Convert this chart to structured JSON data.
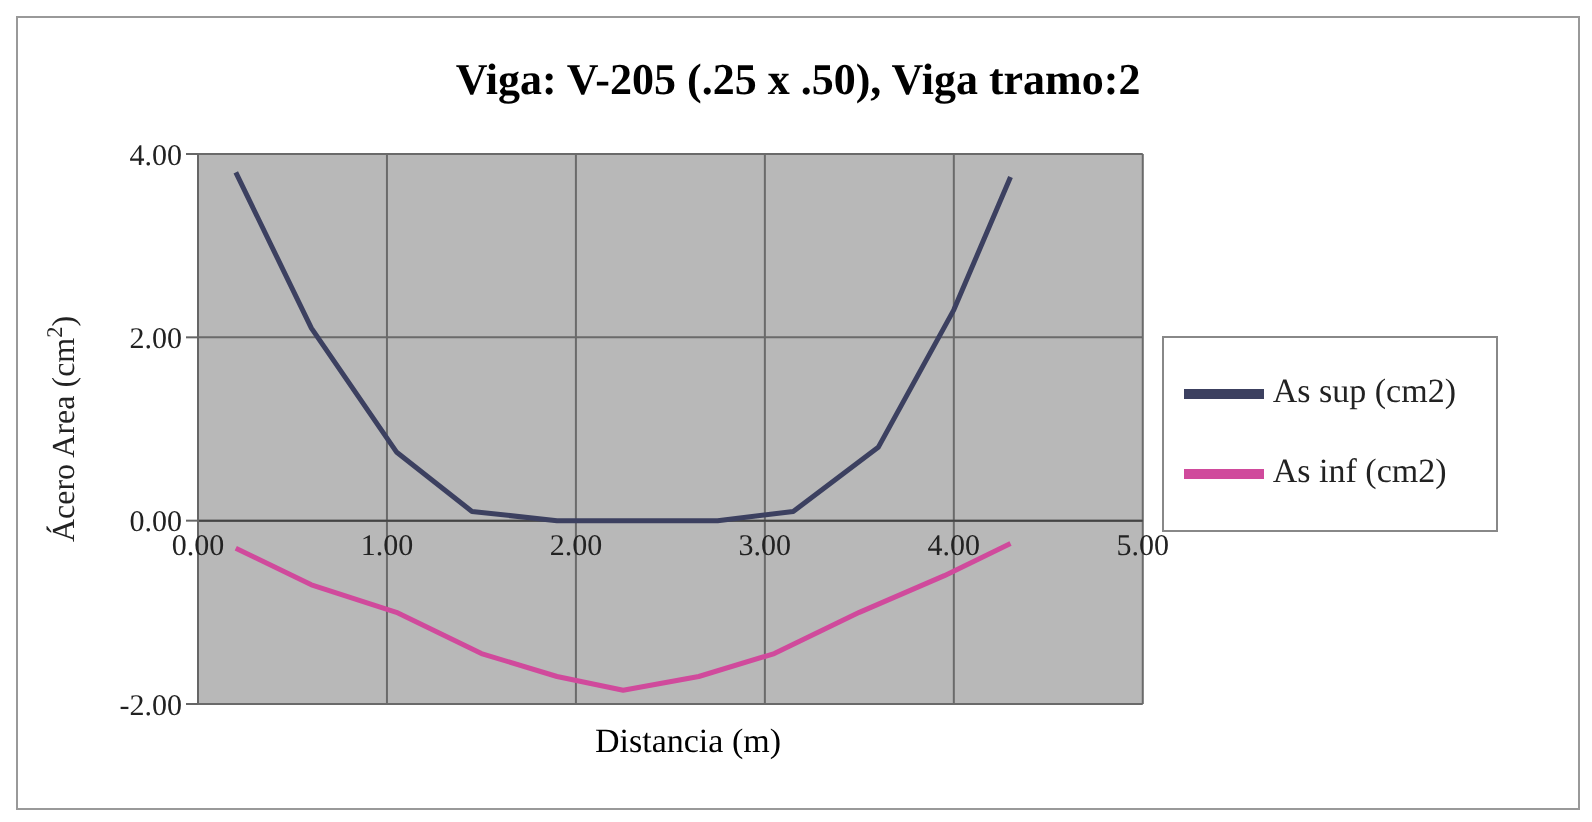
{
  "chart_data": {
    "type": "line",
    "title": "Viga: V-205 (.25 x .50), Viga tramo:2",
    "xlabel": "Distancia (m)",
    "ylabel": "Ácero Area (cm$^{2}$)",
    "series": [
      {
        "name": "As sup (cm2)",
        "color": "#3c4060",
        "x": [
          0.2,
          0.6,
          1.05,
          1.45,
          1.9,
          2.35,
          2.75,
          3.15,
          3.6,
          4.0,
          4.3
        ],
        "values": [
          3.8,
          2.1,
          0.75,
          0.1,
          0,
          0,
          0,
          0.1,
          0.8,
          2.3,
          3.75
        ]
      },
      {
        "name": "As inf (cm2)",
        "color": "#d04a9c",
        "x": [
          0.2,
          0.6,
          1.05,
          1.5,
          1.9,
          2.25,
          2.65,
          3.05,
          3.5,
          3.95,
          4.3
        ],
        "values": [
          -0.3,
          -0.7,
          -1.0,
          -1.45,
          -1.7,
          -1.85,
          -1.7,
          -1.45,
          -1.0,
          -0.6,
          -0.25
        ]
      }
    ],
    "xlim": [
      0,
      5
    ],
    "xticks": [
      {
        "value": 0,
        "label": "0.00"
      },
      {
        "value": 1,
        "label": "1.00"
      },
      {
        "value": 2,
        "label": "2.00"
      },
      {
        "value": 3,
        "label": "3.00"
      },
      {
        "value": 4,
        "label": "4.00"
      },
      {
        "value": 5,
        "label": "5.00"
      }
    ],
    "ylim": [
      -2,
      4
    ],
    "yticks": [
      {
        "value": -2,
        "label": "-2.00"
      },
      {
        "value": 0,
        "label": "0.00"
      },
      {
        "value": 2,
        "label": "2.00"
      },
      {
        "value": 4,
        "label": "4.00"
      }
    ],
    "grid": true,
    "legend": "right",
    "marker": "none",
    "line_style": "solid"
  }
}
